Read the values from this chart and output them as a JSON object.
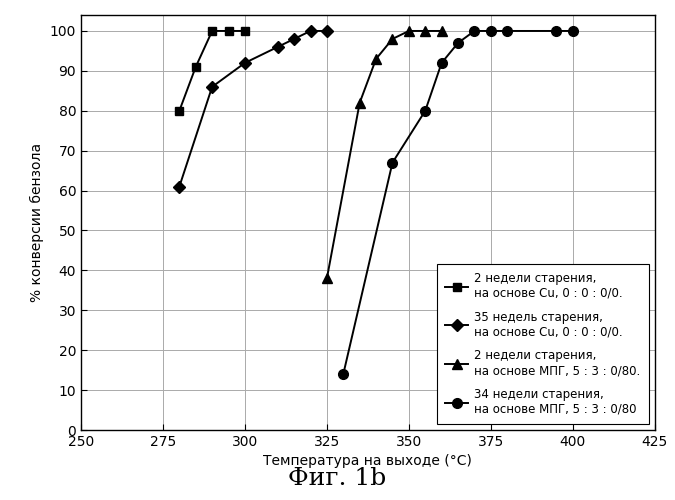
{
  "series": [
    {
      "label": "2 недели старения,\nна основе Cu, 0 : 0 : 0/0.",
      "x": [
        280,
        285,
        290,
        295,
        300
      ],
      "y": [
        80,
        91,
        100,
        100,
        100
      ],
      "marker": "s",
      "markersize": 6
    },
    {
      "label": "35 недель старения,\nна основе Cu, 0 : 0 : 0/0.",
      "x": [
        280,
        290,
        300,
        310,
        315,
        320,
        325
      ],
      "y": [
        61,
        86,
        92,
        96,
        98,
        100,
        100
      ],
      "marker": "D",
      "markersize": 6
    },
    {
      "label": "2 недели старения,\nна основе МПГ, 5 : 3 : 0/80.",
      "x": [
        325,
        335,
        340,
        345,
        350,
        355,
        360
      ],
      "y": [
        38,
        82,
        93,
        98,
        100,
        100,
        100
      ],
      "marker": "^",
      "markersize": 7
    },
    {
      "label": "34 недели старения,\nна основе МПГ, 5 : 3 : 0/80",
      "x": [
        330,
        345,
        355,
        360,
        365,
        370,
        375,
        380,
        395,
        400
      ],
      "y": [
        14,
        67,
        80,
        92,
        97,
        100,
        100,
        100,
        100,
        100
      ],
      "marker": "o",
      "markersize": 7
    }
  ],
  "xlim": [
    250,
    425
  ],
  "ylim": [
    0,
    104
  ],
  "xticks": [
    250,
    275,
    300,
    325,
    350,
    375,
    400,
    425
  ],
  "yticks": [
    0,
    10,
    20,
    30,
    40,
    50,
    60,
    70,
    80,
    90,
    100
  ],
  "xlabel": "Температура на выходе (°C)",
  "ylabel": "% конверсии бензола",
  "title": "Фиг. 1b",
  "background_color": "#ffffff",
  "grid_color": "#aaaaaa",
  "line_color": "#000000"
}
